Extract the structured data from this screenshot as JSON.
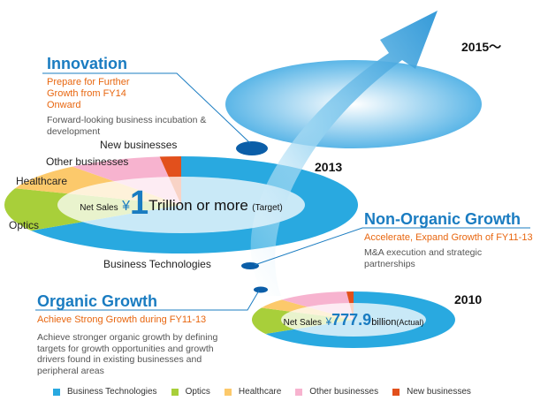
{
  "stages": [
    "2015〜",
    "2013",
    "2010"
  ],
  "innovation": {
    "title": "Innovation",
    "subtitle": "Prepare for Further Growth from FY14 Onward",
    "description": "Forward-looking business incubation & development"
  },
  "non_organic": {
    "title": "Non-Organic Growth",
    "subtitle": "Accelerate, Expand Growth of FY11-13",
    "description": "M&A execution and strategic partnerships"
  },
  "organic": {
    "title": "Organic Growth",
    "subtitle": "Achieve Strong Growth during FY11-13",
    "description": "Achieve stronger organic growth by defining targets for growth opportunities and growth drivers found in existing businesses and peripheral areas"
  },
  "segment_labels": [
    "New businesses",
    "Other businesses",
    "Healthcare",
    "Optics",
    "Business Technologies"
  ],
  "target": {
    "prefix": "Net Sales",
    "symbol": "¥",
    "number": "1",
    "suffix": "Trillion or more",
    "note": "(Target)"
  },
  "actual": {
    "prefix": "Net Sales",
    "symbol": "¥",
    "number": "777.9",
    "suffix": "billion",
    "note": "(Actual)"
  },
  "legend": [
    {
      "label": "Business Technologies",
      "color": "#29a9e0"
    },
    {
      "label": "Optics",
      "color": "#a8cf3a"
    },
    {
      "label": "Healthcare",
      "color": "#fcc96b"
    },
    {
      "label": "Other businesses",
      "color": "#f7b3cf"
    },
    {
      "label": "New businesses",
      "color": "#e2501c"
    }
  ]
}
